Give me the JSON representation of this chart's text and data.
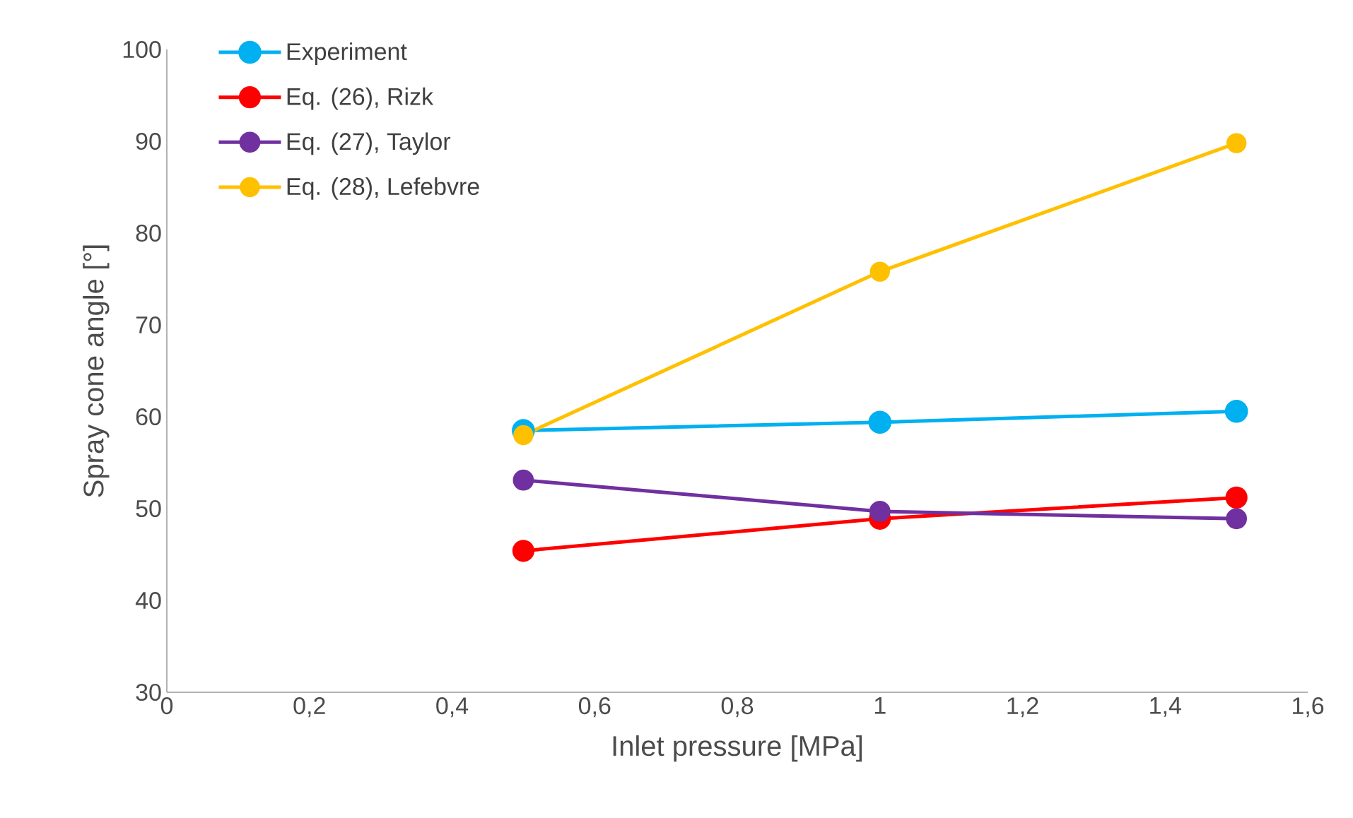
{
  "chart_data": {
    "type": "line",
    "xlabel": "Inlet pressure [MPa]",
    "ylabel": "Spray cone angle [°]",
    "x": [
      0.5,
      1,
      1.5
    ],
    "series": [
      {
        "name": "Experiment",
        "color": "#00b0f0",
        "values": [
          58.5,
          59.4,
          60.6
        ]
      },
      {
        "name": "Eq. (26), Rizk",
        "color": "#ff0000",
        "values": [
          45.4,
          48.9,
          51.2
        ]
      },
      {
        "name": "Eq. (27), Taylor",
        "color": "#7030a0",
        "values": [
          53.1,
          49.7,
          48.9
        ]
      },
      {
        "name": "Eq. (28), Lefebvre",
        "color": "#ffc000",
        "values": [
          58,
          75.8,
          89.8
        ]
      }
    ],
    "xlim": [
      0,
      1.6
    ],
    "xticks": [
      {
        "value": 0,
        "label": "0"
      },
      {
        "value": 0.2,
        "label": "0,2"
      },
      {
        "value": 0.4,
        "label": "0,4"
      },
      {
        "value": 0.6,
        "label": "0,6"
      },
      {
        "value": 0.8,
        "label": "0,8"
      },
      {
        "value": 1,
        "label": "1"
      },
      {
        "value": 1.2,
        "label": "1,2"
      },
      {
        "value": 1.4,
        "label": "1,4"
      },
      {
        "value": 1.6,
        "label": "1,6"
      }
    ],
    "ylim": [
      30,
      100
    ],
    "yticks": [
      30,
      40,
      50,
      60,
      70,
      80,
      90,
      100
    ],
    "grid": false,
    "legend": "top left",
    "marker": "circle",
    "line_style": "solid"
  }
}
